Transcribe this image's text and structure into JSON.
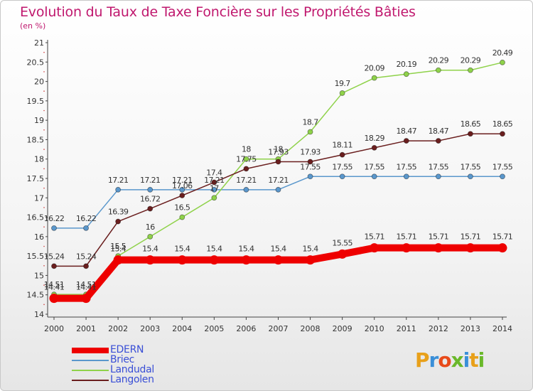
{
  "title": "Evolution du Taux de Taxe Foncière sur les Propriétés Bâties",
  "unit": "(en %)",
  "logo": "Proxiti",
  "logo_colors": [
    "#e8a01a",
    "#3a8fd8",
    "#e84a1a",
    "#6ab82a",
    "#3a8fd8",
    "#e8a01a",
    "#6ab82a"
  ],
  "chart_data": {
    "type": "line",
    "categories": [
      "2000",
      "2001",
      "2002",
      "2003",
      "2004",
      "2005",
      "2006",
      "2007",
      "2008",
      "2009",
      "2010",
      "2011",
      "2012",
      "2013",
      "2014"
    ],
    "ylim": [
      14,
      21
    ],
    "yticks": [
      "14",
      "14.5",
      "15",
      "15.5",
      "16",
      "16.5",
      "17",
      "17.5",
      "18",
      "18.5",
      "19",
      "19.5",
      "20",
      "20.5",
      "21"
    ],
    "grid": false,
    "series": [
      {
        "name": "Briec",
        "color": "#5a97cc",
        "values": [
          16.22,
          16.22,
          17.21,
          17.21,
          17.21,
          17.21,
          17.21,
          17.21,
          17.55,
          17.55,
          17.55,
          17.55,
          17.55,
          17.55,
          17.55
        ],
        "labels": [
          "16.22",
          "16.22",
          "17.21",
          "17.21",
          "17.21",
          "17.21",
          "17.21",
          "17.21",
          "17.55",
          "17.55",
          "17.55",
          "17.55",
          "17.55",
          "17.55",
          "17.55"
        ]
      },
      {
        "name": "Landudal",
        "color": "#8fd24a",
        "values": [
          14.51,
          14.51,
          15.5,
          16,
          16.5,
          17,
          18,
          18,
          18.7,
          19.7,
          20.09,
          20.19,
          20.29,
          20.29,
          20.49
        ],
        "labels": [
          "14.51",
          "14.51",
          "15.5",
          "16",
          "16.5",
          "17",
          "18",
          "18",
          "18.7",
          "19.7",
          "20.09",
          "20.19",
          "20.29",
          "20.29",
          "20.49"
        ]
      },
      {
        "name": "Langolen",
        "color": "#6a1e1e",
        "values": [
          15.24,
          15.24,
          16.39,
          16.72,
          17.06,
          17.4,
          17.75,
          17.93,
          17.93,
          18.11,
          18.29,
          18.47,
          18.47,
          18.65,
          18.65
        ],
        "labels": [
          "15.24",
          "15.24",
          "16.39",
          "16.72",
          "17.06",
          "17.4",
          "17.75",
          "17.93",
          "17.93",
          "18.11",
          "18.29",
          "18.47",
          "18.47",
          "18.65",
          "18.65"
        ]
      },
      {
        "name": "EDERN",
        "color": "#ee0000",
        "values": [
          14.41,
          14.41,
          15.4,
          15.4,
          15.4,
          15.4,
          15.4,
          15.4,
          15.4,
          15.55,
          15.71,
          15.71,
          15.71,
          15.71,
          15.71
        ],
        "labels": [
          "14.41",
          "14.41",
          "15.4",
          "15.4",
          "15.4",
          "15.4",
          "15.4",
          "15.4",
          "15.4",
          "15.55",
          "15.71",
          "15.71",
          "15.71",
          "15.71",
          "15.71"
        ]
      }
    ],
    "legend": [
      "EDERN",
      "Briec",
      "Landudal",
      "Langolen"
    ]
  }
}
